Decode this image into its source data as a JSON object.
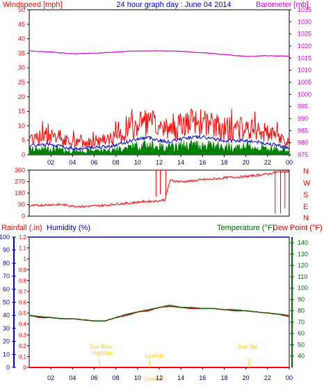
{
  "title": "24 hour graph day : June 04 2014",
  "colors": {
    "wind": "#ff0000",
    "gust_line": "#0000cc",
    "gust_fill": "#008000",
    "barometer": "#cc00cc",
    "direction": "#ff0000",
    "rain": "#ff0000",
    "humidity": "#0000cc",
    "temperature": "#006600",
    "dewpoint": "#cc0000",
    "frame": "#000000",
    "annotation": "#ffcc00"
  },
  "top_panel": {
    "left_axis_label": "Windspeed [mph]",
    "right_axis_label": "Barometer [mb]"
  },
  "direction_panel": {
    "compass_labels": [
      "N",
      "W",
      "S",
      "E",
      "N"
    ]
  },
  "bottom_panel": {
    "rain_label": "Rainfall (.in)",
    "humidity_label": "Humidity (%)",
    "temperature_label": "Temperature (°F)",
    "dewpoint_label": "Dew Point (°F)"
  },
  "annotations": {
    "sunrise": "Sun Rise",
    "hightide": "Hightide",
    "lowtide": "Lowtide",
    "lowtide_bottom": "Lowtide",
    "sunset": "Sun Set"
  },
  "chart_data": [
    {
      "type": "line",
      "name": "wind",
      "x_ticks": [
        "02",
        "04",
        "06",
        "08",
        "10",
        "12",
        "14",
        "16",
        "18",
        "20",
        "22",
        "00"
      ],
      "x_range_hours": [
        0,
        24
      ],
      "ylim_left": [
        0,
        50
      ],
      "ylim_right": [
        975,
        1035
      ],
      "y_ticks_left": [
        0,
        5,
        10,
        15,
        20,
        25,
        30,
        35,
        40,
        45,
        50
      ],
      "y_ticks_right": [
        975,
        980,
        985,
        990,
        995,
        1000,
        1005,
        1010,
        1015,
        1020,
        1025,
        1030,
        1035
      ],
      "grid": false,
      "series": [
        {
          "name": "Windspeed",
          "x": [
            0,
            1,
            2,
            3,
            4,
            5,
            6,
            7,
            8,
            9,
            10,
            11,
            12,
            13,
            14,
            15,
            16,
            17,
            18,
            19,
            20,
            21,
            22,
            23,
            24
          ],
          "values": [
            6,
            6,
            7,
            5,
            4,
            4,
            5,
            5,
            6,
            8,
            10,
            11,
            9,
            8,
            10,
            11,
            11,
            10,
            9,
            9,
            9,
            8,
            7,
            6,
            4
          ]
        },
        {
          "name": "Barometer",
          "x": [
            0,
            2,
            4,
            6,
            8,
            10,
            12,
            14,
            16,
            18,
            20,
            22,
            24
          ],
          "values": [
            1018,
            1017.5,
            1016.8,
            1017,
            1017.5,
            1018,
            1018,
            1017.8,
            1017.2,
            1016.5,
            1015.7,
            1016,
            1015.8
          ]
        }
      ]
    },
    {
      "type": "scatter",
      "name": "wind direction",
      "x_range_hours": [
        0,
        24
      ],
      "ylim": [
        0,
        360
      ],
      "y_ticks": [
        0,
        90,
        180,
        270,
        360
      ],
      "series": [
        {
          "name": "Wind Direction",
          "x": [
            0,
            1,
            2,
            3,
            4,
            5,
            6,
            7,
            8,
            9,
            10,
            11,
            12,
            12.5,
            13,
            14,
            15,
            16,
            17,
            18,
            19,
            20,
            21,
            22,
            23,
            24
          ],
          "values": [
            80,
            85,
            90,
            90,
            80,
            75,
            80,
            85,
            95,
            100,
            110,
            115,
            120,
            130,
            280,
            270,
            275,
            285,
            290,
            300,
            305,
            310,
            320,
            330,
            345,
            350
          ]
        }
      ]
    },
    {
      "type": "line",
      "name": "rain humidity temperature",
      "x_range_hours": [
        0,
        24
      ],
      "ylim_humidity": [
        0,
        100
      ],
      "ylim_rain": [
        0,
        1.2
      ],
      "ylim_temperature": [
        30,
        145
      ],
      "y_ticks_humidity": [
        0,
        10,
        20,
        30,
        40,
        50,
        60,
        70,
        80,
        90,
        100
      ],
      "y_ticks_rain": [
        0,
        0.1,
        0.2,
        0.3,
        0.4,
        0.5,
        0.6,
        0.7,
        0.8,
        0.9,
        1,
        1.1,
        1.2
      ],
      "y_ticks_temperature": [
        40,
        50,
        60,
        70,
        80,
        90,
        100,
        110,
        120,
        130,
        140
      ],
      "series": [
        {
          "name": "Temperature",
          "x": [
            0,
            1,
            2,
            3,
            4,
            5,
            6,
            7,
            8,
            9,
            10,
            11,
            12,
            13,
            14,
            15,
            16,
            17,
            18,
            19,
            20,
            21,
            22,
            23,
            24
          ],
          "values": [
            76,
            75,
            74,
            73,
            73,
            72,
            71,
            71,
            74,
            77,
            79,
            81,
            83,
            85,
            83,
            83,
            82,
            82,
            81,
            81,
            80,
            79,
            78,
            77,
            76
          ]
        },
        {
          "name": "Dew Point",
          "x": [
            0,
            1,
            2,
            3,
            4,
            5,
            6,
            7,
            8,
            9,
            10,
            11,
            12,
            13,
            14,
            15,
            16,
            17,
            18,
            19,
            20,
            21,
            22,
            23,
            24
          ],
          "values": [
            76,
            74,
            74,
            73,
            73,
            72,
            71,
            71,
            74,
            76,
            79,
            80,
            83,
            84,
            83,
            82,
            82,
            82,
            81,
            80,
            80,
            79,
            78,
            77,
            75
          ]
        },
        {
          "name": "Rainfall",
          "x": [
            0,
            24
          ],
          "values": [
            0,
            0
          ]
        },
        {
          "name": "Humidity",
          "x": [
            0,
            24
          ],
          "values": [
            100,
            100
          ]
        }
      ]
    }
  ]
}
